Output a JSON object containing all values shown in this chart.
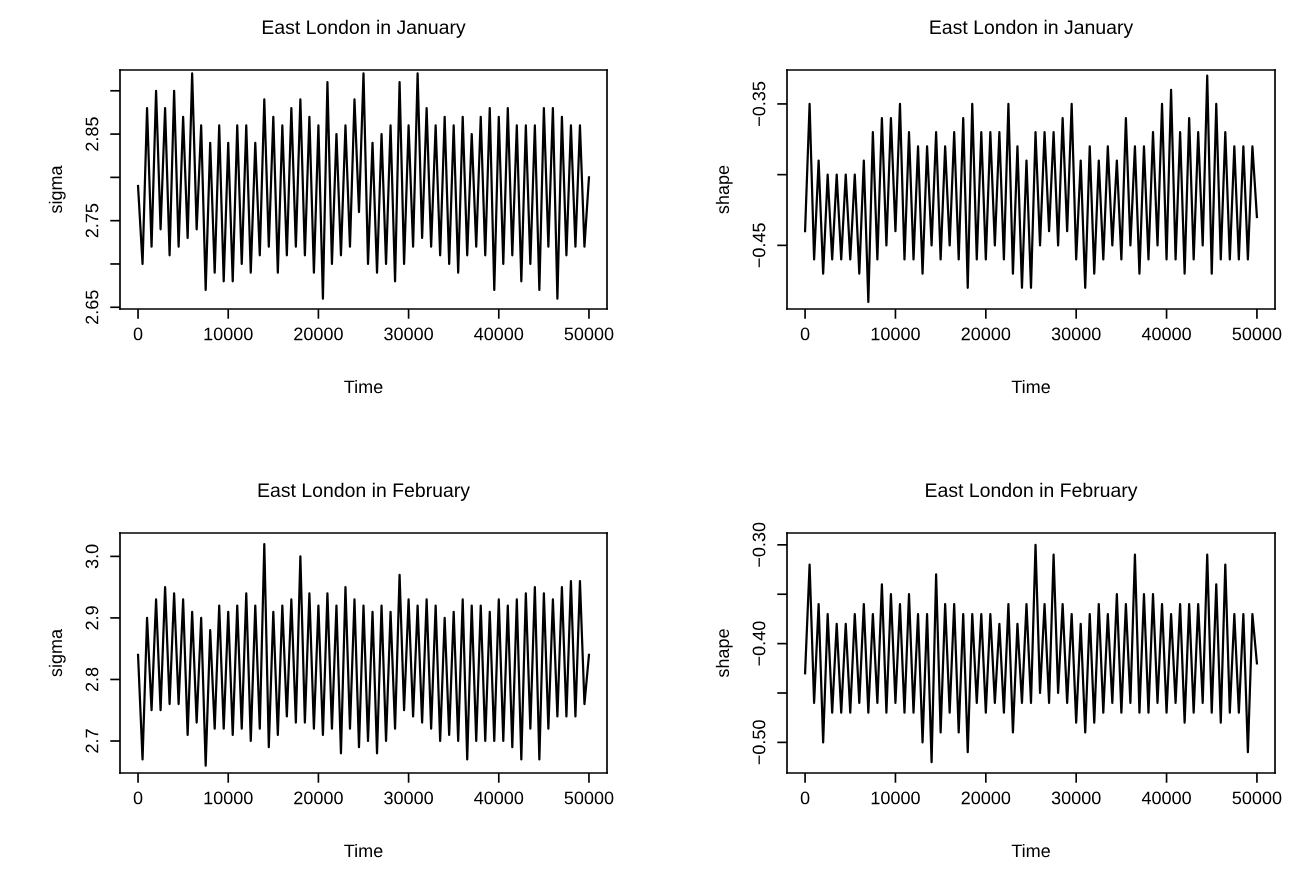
{
  "chart_data": [
    {
      "type": "line",
      "title": "East London in January",
      "xlabel": "Time",
      "ylabel": "sigma",
      "color": "#000000",
      "grid": false,
      "legend": false,
      "xlim": [
        -2000,
        52000
      ],
      "xticks": [
        0,
        10000,
        20000,
        30000,
        40000,
        50000
      ],
      "ylim": [
        2.648,
        2.924
      ],
      "yticks": [
        2.65,
        {
          "value": 2.7,
          "label": null
        },
        2.75,
        {
          "value": 2.8,
          "label": null
        },
        2.85,
        {
          "value": 2.9,
          "label": null
        }
      ],
      "x": [
        0,
        500,
        1000,
        1500,
        2000,
        2500,
        3000,
        3500,
        4000,
        4500,
        5000,
        5500,
        6000,
        6500,
        7000,
        7500,
        8000,
        8500,
        9000,
        9500,
        10000,
        10500,
        11000,
        11500,
        12000,
        12500,
        13000,
        13500,
        14000,
        14500,
        15000,
        15500,
        16000,
        16500,
        17000,
        17500,
        18000,
        18500,
        19000,
        19500,
        20000,
        20500,
        21000,
        21500,
        22000,
        22500,
        23000,
        23500,
        24000,
        24500,
        25000,
        25500,
        26000,
        26500,
        27000,
        27500,
        28000,
        28500,
        29000,
        29500,
        30000,
        30500,
        31000,
        31500,
        32000,
        32500,
        33000,
        33500,
        34000,
        34500,
        35000,
        35500,
        36000,
        36500,
        37000,
        37500,
        38000,
        38500,
        39000,
        39500,
        40000,
        40500,
        41000,
        41500,
        42000,
        42500,
        43000,
        43500,
        44000,
        44500,
        45000,
        45500,
        46000,
        46500,
        47000,
        47500,
        48000,
        48500,
        49000,
        49500,
        50000
      ],
      "values": [
        2.79,
        2.7,
        2.88,
        2.72,
        2.9,
        2.74,
        2.88,
        2.71,
        2.9,
        2.72,
        2.87,
        2.73,
        2.92,
        2.74,
        2.86,
        2.67,
        2.84,
        2.69,
        2.86,
        2.68,
        2.84,
        2.68,
        2.86,
        2.7,
        2.86,
        2.69,
        2.84,
        2.71,
        2.89,
        2.72,
        2.87,
        2.69,
        2.86,
        2.71,
        2.88,
        2.72,
        2.89,
        2.71,
        2.87,
        2.69,
        2.86,
        2.66,
        2.91,
        2.7,
        2.85,
        2.71,
        2.86,
        2.72,
        2.89,
        2.76,
        2.92,
        2.7,
        2.84,
        2.69,
        2.85,
        2.7,
        2.86,
        2.68,
        2.91,
        2.7,
        2.86,
        2.72,
        2.92,
        2.73,
        2.88,
        2.72,
        2.86,
        2.71,
        2.87,
        2.7,
        2.86,
        2.69,
        2.87,
        2.71,
        2.85,
        2.72,
        2.87,
        2.71,
        2.88,
        2.67,
        2.87,
        2.7,
        2.88,
        2.71,
        2.86,
        2.68,
        2.86,
        2.7,
        2.86,
        2.67,
        2.88,
        2.72,
        2.88,
        2.66,
        2.87,
        2.71,
        2.86,
        2.72,
        2.86,
        2.72,
        2.8
      ]
    },
    {
      "type": "line",
      "title": "East London in January",
      "xlabel": "Time",
      "ylabel": "shape",
      "color": "#000000",
      "grid": false,
      "legend": false,
      "xlim": [
        -2000,
        52000
      ],
      "xticks": [
        0,
        10000,
        20000,
        30000,
        40000,
        50000
      ],
      "ylim": [
        -0.495,
        -0.326
      ],
      "yticks": [
        {
          "value": -0.45,
          "label": "−0.45"
        },
        {
          "value": -0.4,
          "label": null
        },
        {
          "value": -0.35,
          "label": "−0.35"
        }
      ],
      "x": [
        0,
        500,
        1000,
        1500,
        2000,
        2500,
        3000,
        3500,
        4000,
        4500,
        5000,
        5500,
        6000,
        6500,
        7000,
        7500,
        8000,
        8500,
        9000,
        9500,
        10000,
        10500,
        11000,
        11500,
        12000,
        12500,
        13000,
        13500,
        14000,
        14500,
        15000,
        15500,
        16000,
        16500,
        17000,
        17500,
        18000,
        18500,
        19000,
        19500,
        20000,
        20500,
        21000,
        21500,
        22000,
        22500,
        23000,
        23500,
        24000,
        24500,
        25000,
        25500,
        26000,
        26500,
        27000,
        27500,
        28000,
        28500,
        29000,
        29500,
        30000,
        30500,
        31000,
        31500,
        32000,
        32500,
        33000,
        33500,
        34000,
        34500,
        35000,
        35500,
        36000,
        36500,
        37000,
        37500,
        38000,
        38500,
        39000,
        39500,
        40000,
        40500,
        41000,
        41500,
        42000,
        42500,
        43000,
        43500,
        44000,
        44500,
        45000,
        45500,
        46000,
        46500,
        47000,
        47500,
        48000,
        48500,
        49000,
        49500,
        50000
      ],
      "values": [
        -0.44,
        -0.35,
        -0.46,
        -0.39,
        -0.47,
        -0.4,
        -0.46,
        -0.4,
        -0.46,
        -0.4,
        -0.46,
        -0.4,
        -0.47,
        -0.39,
        -0.49,
        -0.37,
        -0.46,
        -0.36,
        -0.45,
        -0.36,
        -0.44,
        -0.35,
        -0.46,
        -0.37,
        -0.46,
        -0.38,
        -0.47,
        -0.38,
        -0.45,
        -0.37,
        -0.46,
        -0.38,
        -0.45,
        -0.37,
        -0.46,
        -0.36,
        -0.48,
        -0.35,
        -0.46,
        -0.37,
        -0.46,
        -0.37,
        -0.45,
        -0.37,
        -0.46,
        -0.35,
        -0.47,
        -0.38,
        -0.48,
        -0.39,
        -0.48,
        -0.37,
        -0.45,
        -0.37,
        -0.44,
        -0.37,
        -0.45,
        -0.36,
        -0.44,
        -0.35,
        -0.46,
        -0.39,
        -0.48,
        -0.38,
        -0.47,
        -0.39,
        -0.46,
        -0.38,
        -0.45,
        -0.39,
        -0.46,
        -0.36,
        -0.45,
        -0.38,
        -0.47,
        -0.38,
        -0.46,
        -0.37,
        -0.45,
        -0.35,
        -0.46,
        -0.34,
        -0.46,
        -0.37,
        -0.47,
        -0.36,
        -0.46,
        -0.37,
        -0.45,
        -0.33,
        -0.47,
        -0.35,
        -0.46,
        -0.37,
        -0.46,
        -0.38,
        -0.46,
        -0.38,
        -0.46,
        -0.38,
        -0.43
      ]
    },
    {
      "type": "line",
      "title": "East London in February",
      "xlabel": "Time",
      "ylabel": "sigma",
      "color": "#000000",
      "grid": false,
      "legend": false,
      "xlim": [
        -2000,
        52000
      ],
      "xticks": [
        0,
        10000,
        20000,
        30000,
        40000,
        50000
      ],
      "ylim": [
        2.648,
        3.038
      ],
      "yticks": [
        {
          "value": 2.7,
          "label": "2.7"
        },
        {
          "value": 2.8,
          "label": "2.8"
        },
        {
          "value": 2.9,
          "label": "2.9"
        },
        {
          "value": 3.0,
          "label": "3.0"
        }
      ],
      "x": [
        0,
        500,
        1000,
        1500,
        2000,
        2500,
        3000,
        3500,
        4000,
        4500,
        5000,
        5500,
        6000,
        6500,
        7000,
        7500,
        8000,
        8500,
        9000,
        9500,
        10000,
        10500,
        11000,
        11500,
        12000,
        12500,
        13000,
        13500,
        14000,
        14500,
        15000,
        15500,
        16000,
        16500,
        17000,
        17500,
        18000,
        18500,
        19000,
        19500,
        20000,
        20500,
        21000,
        21500,
        22000,
        22500,
        23000,
        23500,
        24000,
        24500,
        25000,
        25500,
        26000,
        26500,
        27000,
        27500,
        28000,
        28500,
        29000,
        29500,
        30000,
        30500,
        31000,
        31500,
        32000,
        32500,
        33000,
        33500,
        34000,
        34500,
        35000,
        35500,
        36000,
        36500,
        37000,
        37500,
        38000,
        38500,
        39000,
        39500,
        40000,
        40500,
        41000,
        41500,
        42000,
        42500,
        43000,
        43500,
        44000,
        44500,
        45000,
        45500,
        46000,
        46500,
        47000,
        47500,
        48000,
        48500,
        49000,
        49500,
        50000
      ],
      "values": [
        2.84,
        2.67,
        2.9,
        2.75,
        2.93,
        2.75,
        2.95,
        2.76,
        2.94,
        2.76,
        2.93,
        2.71,
        2.91,
        2.73,
        2.9,
        2.66,
        2.88,
        2.72,
        2.92,
        2.72,
        2.91,
        2.71,
        2.92,
        2.72,
        2.94,
        2.7,
        2.92,
        2.72,
        3.02,
        2.69,
        2.91,
        2.71,
        2.92,
        2.74,
        2.93,
        2.73,
        3.0,
        2.73,
        2.94,
        2.72,
        2.92,
        2.71,
        2.94,
        2.72,
        2.92,
        2.68,
        2.95,
        2.72,
        2.93,
        2.69,
        2.92,
        2.7,
        2.91,
        2.68,
        2.92,
        2.7,
        2.91,
        2.72,
        2.97,
        2.75,
        2.93,
        2.74,
        2.92,
        2.73,
        2.93,
        2.72,
        2.92,
        2.7,
        2.9,
        2.71,
        2.91,
        2.7,
        2.93,
        2.67,
        2.92,
        2.7,
        2.92,
        2.7,
        2.91,
        2.7,
        2.93,
        2.7,
        2.92,
        2.69,
        2.93,
        2.67,
        2.94,
        2.72,
        2.95,
        2.67,
        2.94,
        2.72,
        2.93,
        2.74,
        2.95,
        2.74,
        2.96,
        2.74,
        2.96,
        2.76,
        2.84
      ]
    },
    {
      "type": "line",
      "title": "East London in February",
      "xlabel": "Time",
      "ylabel": "shape",
      "color": "#000000",
      "grid": false,
      "legend": false,
      "xlim": [
        -2000,
        52000
      ],
      "xticks": [
        0,
        10000,
        20000,
        30000,
        40000,
        50000
      ],
      "ylim": [
        -0.531,
        -0.288
      ],
      "yticks": [
        {
          "value": -0.5,
          "label": "−0.50"
        },
        {
          "value": -0.45,
          "label": null
        },
        {
          "value": -0.4,
          "label": "−0.40"
        },
        {
          "value": -0.35,
          "label": null
        },
        {
          "value": -0.3,
          "label": "−0.30"
        }
      ],
      "x": [
        0,
        500,
        1000,
        1500,
        2000,
        2500,
        3000,
        3500,
        4000,
        4500,
        5000,
        5500,
        6000,
        6500,
        7000,
        7500,
        8000,
        8500,
        9000,
        9500,
        10000,
        10500,
        11000,
        11500,
        12000,
        12500,
        13000,
        13500,
        14000,
        14500,
        15000,
        15500,
        16000,
        16500,
        17000,
        17500,
        18000,
        18500,
        19000,
        19500,
        20000,
        20500,
        21000,
        21500,
        22000,
        22500,
        23000,
        23500,
        24000,
        24500,
        25000,
        25500,
        26000,
        26500,
        27000,
        27500,
        28000,
        28500,
        29000,
        29500,
        30000,
        30500,
        31000,
        31500,
        32000,
        32500,
        33000,
        33500,
        34000,
        34500,
        35000,
        35500,
        36000,
        36500,
        37000,
        37500,
        38000,
        38500,
        39000,
        39500,
        40000,
        40500,
        41000,
        41500,
        42000,
        42500,
        43000,
        43500,
        44000,
        44500,
        45000,
        45500,
        46000,
        46500,
        47000,
        47500,
        48000,
        48500,
        49000,
        49500,
        50000
      ],
      "values": [
        -0.43,
        -0.32,
        -0.46,
        -0.36,
        -0.5,
        -0.37,
        -0.47,
        -0.38,
        -0.47,
        -0.38,
        -0.47,
        -0.37,
        -0.46,
        -0.36,
        -0.47,
        -0.37,
        -0.46,
        -0.34,
        -0.47,
        -0.35,
        -0.46,
        -0.36,
        -0.47,
        -0.35,
        -0.47,
        -0.37,
        -0.5,
        -0.37,
        -0.52,
        -0.33,
        -0.49,
        -0.36,
        -0.47,
        -0.36,
        -0.49,
        -0.37,
        -0.51,
        -0.37,
        -0.46,
        -0.37,
        -0.47,
        -0.37,
        -0.46,
        -0.38,
        -0.47,
        -0.36,
        -0.49,
        -0.38,
        -0.46,
        -0.36,
        -0.46,
        -0.3,
        -0.45,
        -0.36,
        -0.46,
        -0.31,
        -0.45,
        -0.36,
        -0.46,
        -0.37,
        -0.48,
        -0.38,
        -0.49,
        -0.37,
        -0.48,
        -0.36,
        -0.47,
        -0.37,
        -0.46,
        -0.35,
        -0.47,
        -0.36,
        -0.46,
        -0.31,
        -0.47,
        -0.35,
        -0.47,
        -0.35,
        -0.46,
        -0.36,
        -0.47,
        -0.37,
        -0.46,
        -0.36,
        -0.48,
        -0.36,
        -0.47,
        -0.36,
        -0.46,
        -0.31,
        -0.47,
        -0.34,
        -0.48,
        -0.32,
        -0.47,
        -0.37,
        -0.47,
        -0.37,
        -0.51,
        -0.37,
        -0.42
      ]
    }
  ]
}
